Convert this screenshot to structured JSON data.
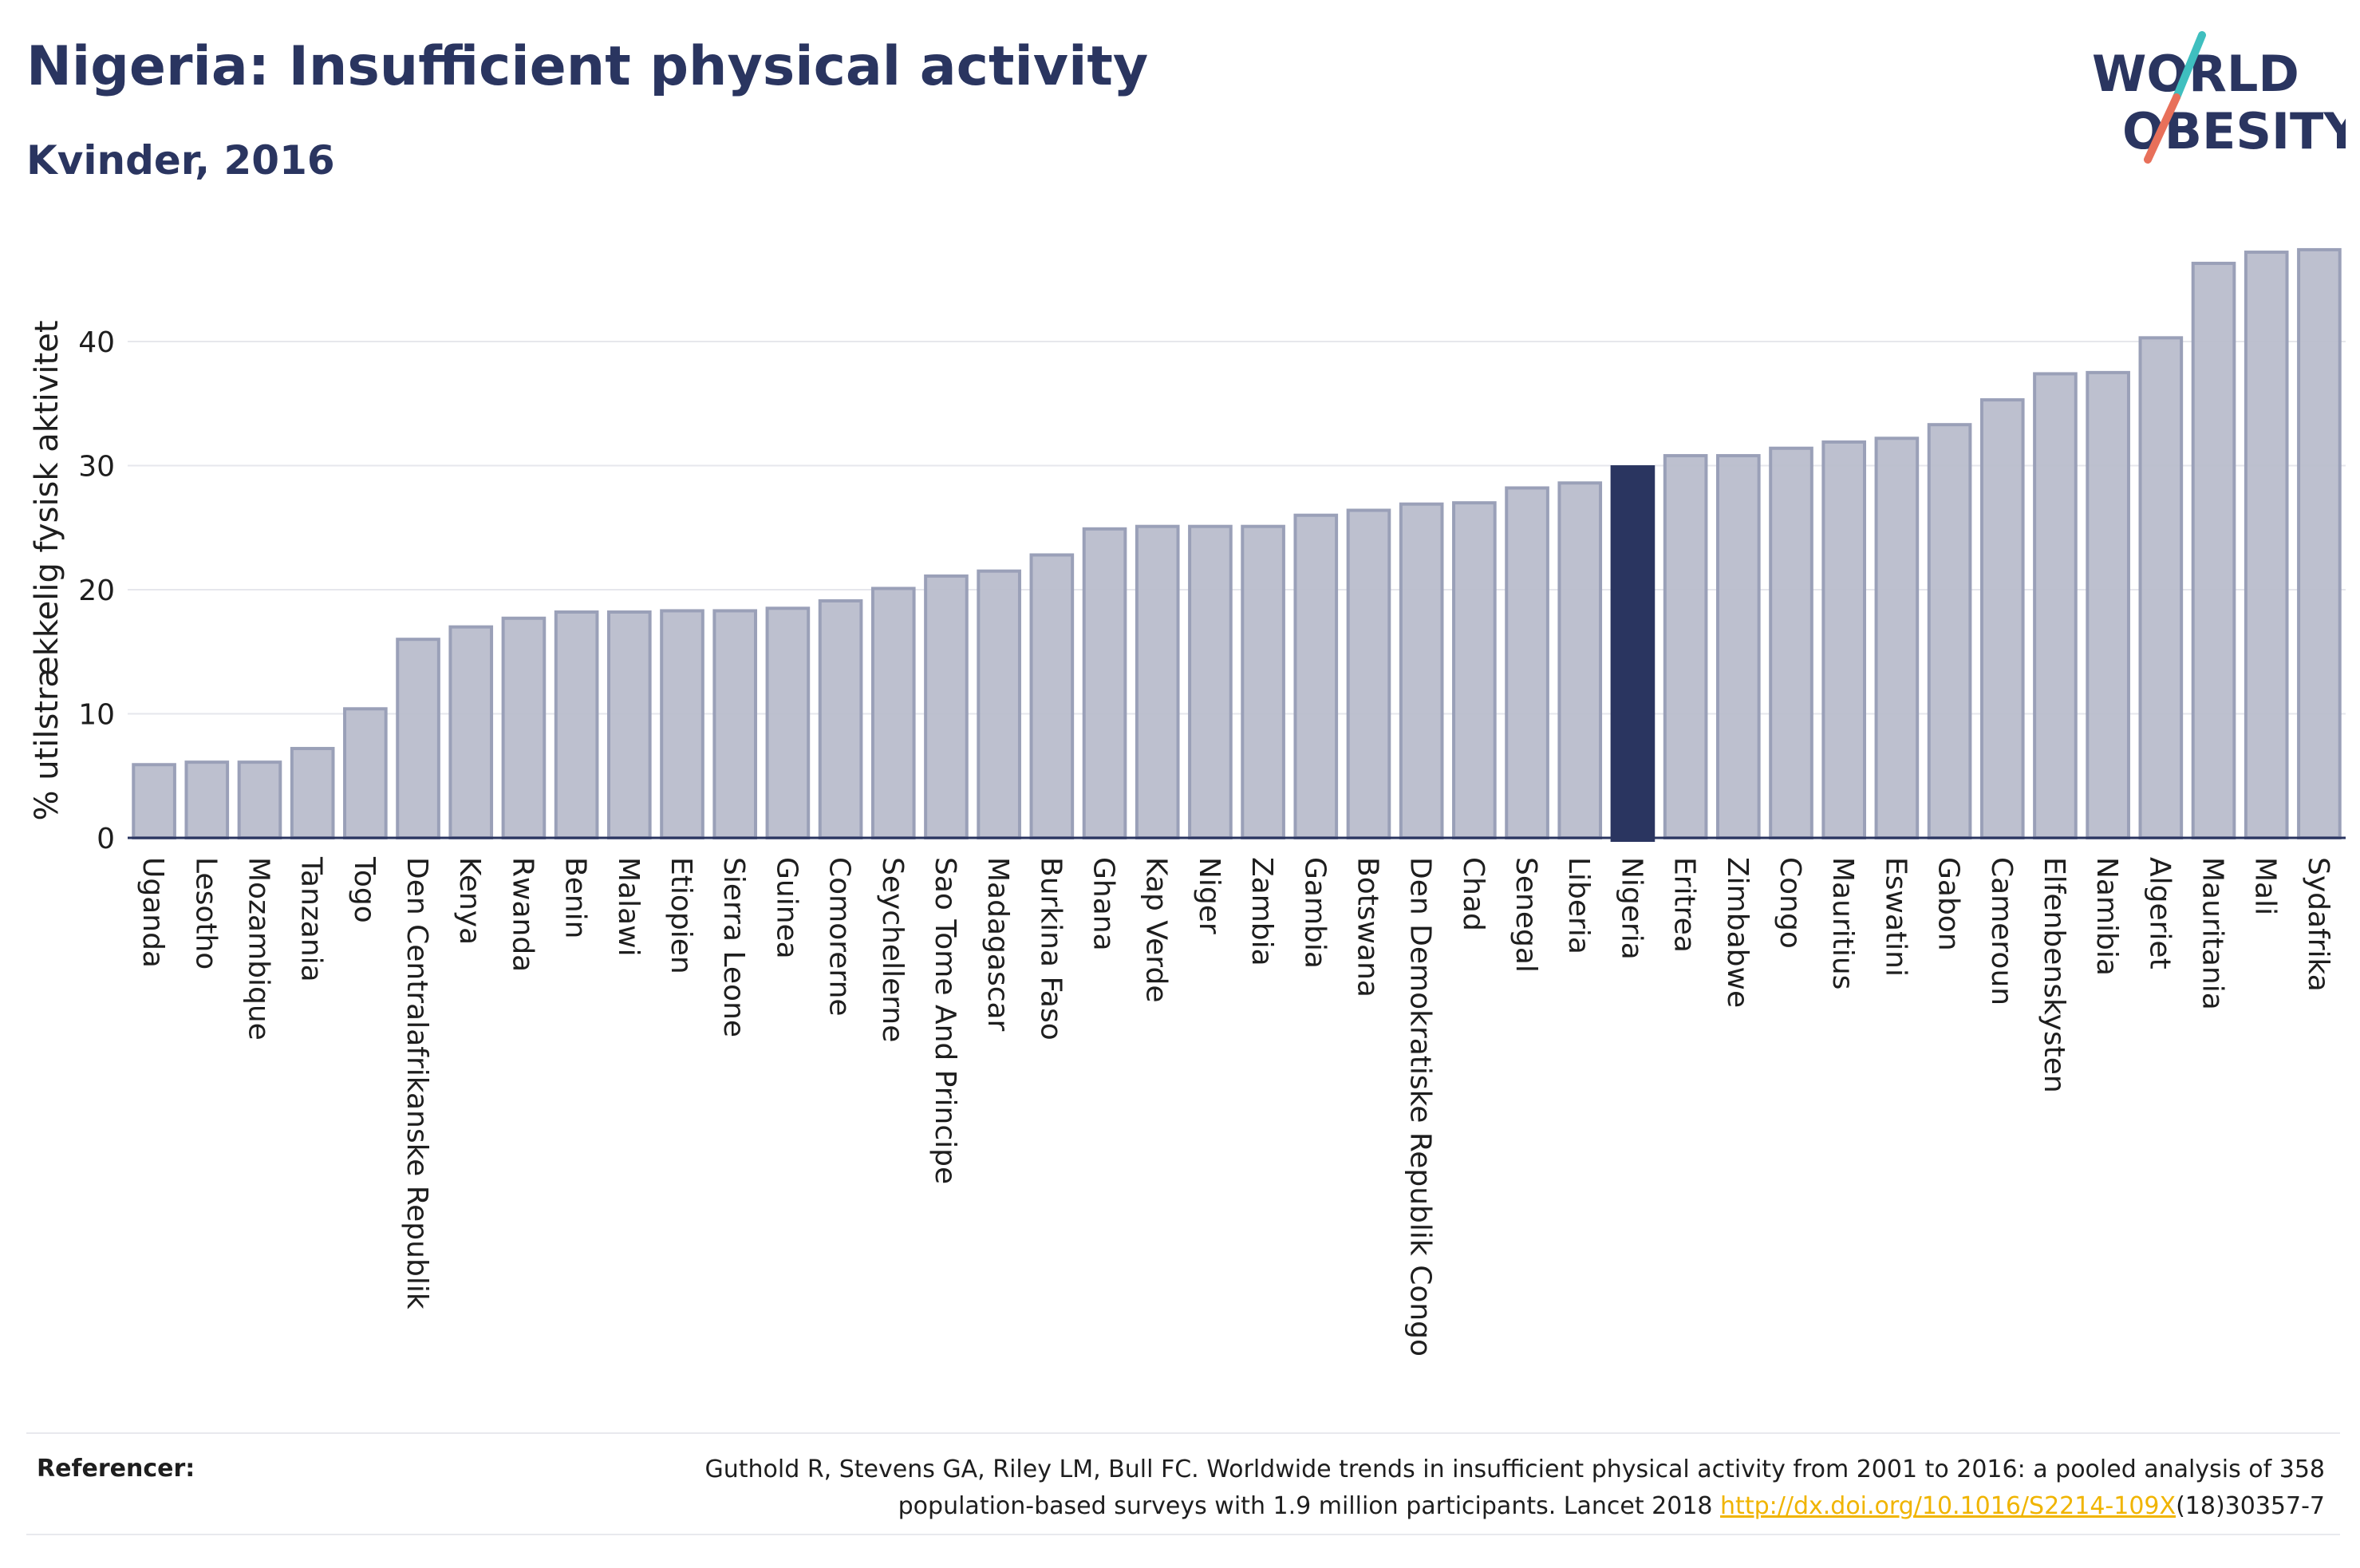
{
  "header": {
    "title": "Nigeria: Insufficient physical activity",
    "subtitle": "Kvinder, 2016"
  },
  "logo": {
    "line1": "WORLD",
    "line2": "OBESITY",
    "text_color": "#2a3560",
    "slash_colors": [
      "#3fbfbf",
      "#e8705a"
    ]
  },
  "chart_data": {
    "type": "bar",
    "ylabel": "% utilstrækkelig fysisk aktivitet",
    "xlabel": "",
    "ylim": [
      0,
      48
    ],
    "yticks": [
      0,
      10,
      20,
      30,
      40
    ],
    "grid": true,
    "highlight": "Nigeria",
    "colors": {
      "bar_fill": "#b9bdcc",
      "bar_stroke": "#9aa0b8",
      "highlight_fill": "#2a3560",
      "grid": "#e6e7ec",
      "axis": "#2a3560"
    },
    "categories": [
      "Uganda",
      "Lesotho",
      "Mozambique",
      "Tanzania",
      "Togo",
      "Den Centralafrikanske Republik",
      "Kenya",
      "Rwanda",
      "Benin",
      "Malawi",
      "Etiopien",
      "Sierra Leone",
      "Guinea",
      "Comorerne",
      "Seychellerne",
      "Sao Tome And Principe",
      "Madagascar",
      "Burkina Faso",
      "Ghana",
      "Kap Verde",
      "Niger",
      "Zambia",
      "Gambia",
      "Botswana",
      "Den Demokratiske Republik Congo",
      "Chad",
      "Senegal",
      "Liberia",
      "Nigeria",
      "Eritrea",
      "Zimbabwe",
      "Congo",
      "Mauritius",
      "Eswatini",
      "Gabon",
      "Cameroun",
      "Elfenbenskysten",
      "Namibia",
      "Algeriet",
      "Mauritania",
      "Mali",
      "Sydafrika"
    ],
    "values": [
      5.9,
      6.1,
      6.1,
      7.2,
      10.4,
      16.0,
      17.0,
      17.7,
      18.2,
      18.2,
      18.3,
      18.3,
      18.5,
      19.1,
      20.1,
      21.1,
      21.5,
      22.8,
      24.9,
      25.1,
      25.1,
      25.1,
      26.0,
      26.4,
      26.9,
      27.0,
      28.2,
      28.6,
      29.9,
      30.8,
      30.8,
      31.4,
      31.9,
      32.2,
      33.3,
      35.3,
      37.4,
      37.5,
      40.3,
      46.3,
      47.2,
      47.4
    ]
  },
  "references": {
    "label": "Referencer:",
    "text_line1": "Guthold R, Stevens GA, Riley LM, Bull FC. Worldwide trends in insufficient physical activity from 2001 to 2016: a pooled analysis of 358",
    "text_line2_prefix": "population-based surveys with 1.9 million participants. Lancet 2018 ",
    "link": "http://dx.doi.org/10.1016/S2214-109X",
    "text_line2_suffix": "(18)30357-7"
  }
}
